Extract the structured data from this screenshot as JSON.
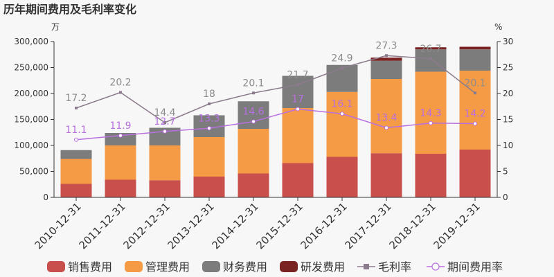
{
  "title": "历年期间费用及毛利率变化",
  "left_unit": "万",
  "right_unit": "%",
  "colors": {
    "sales": "#c84f4b",
    "admin": "#f59a45",
    "finance": "#7c7c7c",
    "rd": "#7a2323",
    "gross_margin": "#8c7b8c",
    "period_expense": "#b86fe0"
  },
  "chart_data": {
    "type": "bar",
    "stacked": true,
    "categories": [
      "2010-12-31",
      "2011-12-31",
      "2012-12-31",
      "2013-12-31",
      "2014-12-31",
      "2015-12-31",
      "2016-12-31",
      "2017-12-31",
      "2018-12-31",
      "2019-12-31"
    ],
    "series": [
      {
        "name": "销售费用",
        "axis": "left",
        "values": [
          26000,
          34000,
          33000,
          40000,
          46000,
          66000,
          78000,
          85000,
          84000,
          92000
        ]
      },
      {
        "name": "管理费用",
        "axis": "left",
        "values": [
          48000,
          66000,
          67000,
          76000,
          86000,
          106000,
          125000,
          143000,
          158000,
          152000
        ]
      },
      {
        "name": "财务费用",
        "axis": "left",
        "values": [
          17000,
          24000,
          34000,
          42000,
          53000,
          62000,
          52000,
          35000,
          43000,
          41000
        ]
      },
      {
        "name": "研发费用",
        "axis": "left",
        "values": [
          0,
          0,
          0,
          0,
          0,
          0,
          0,
          6000,
          4000,
          5000
        ]
      }
    ],
    "lines": [
      {
        "name": "毛利率",
        "axis": "right",
        "values": [
          17.2,
          20.2,
          14.4,
          18,
          20.1,
          21.7,
          24.9,
          27.3,
          26.7,
          20.1
        ]
      },
      {
        "name": "期间费用率",
        "axis": "right",
        "values": [
          11.1,
          11.9,
          12.7,
          13.3,
          14.6,
          17,
          16.1,
          13.4,
          14.3,
          14.2
        ]
      }
    ],
    "ylim_left": [
      0,
      300000
    ],
    "yticks_left": [
      "0",
      "50,000",
      "100,000",
      "150,000",
      "200,000",
      "250,000",
      "300,000"
    ],
    "ylim_right": [
      0,
      30
    ],
    "yticks_right": [
      "0",
      "5",
      "10",
      "15",
      "20",
      "25",
      "30"
    ],
    "legend_position": "bottom"
  }
}
